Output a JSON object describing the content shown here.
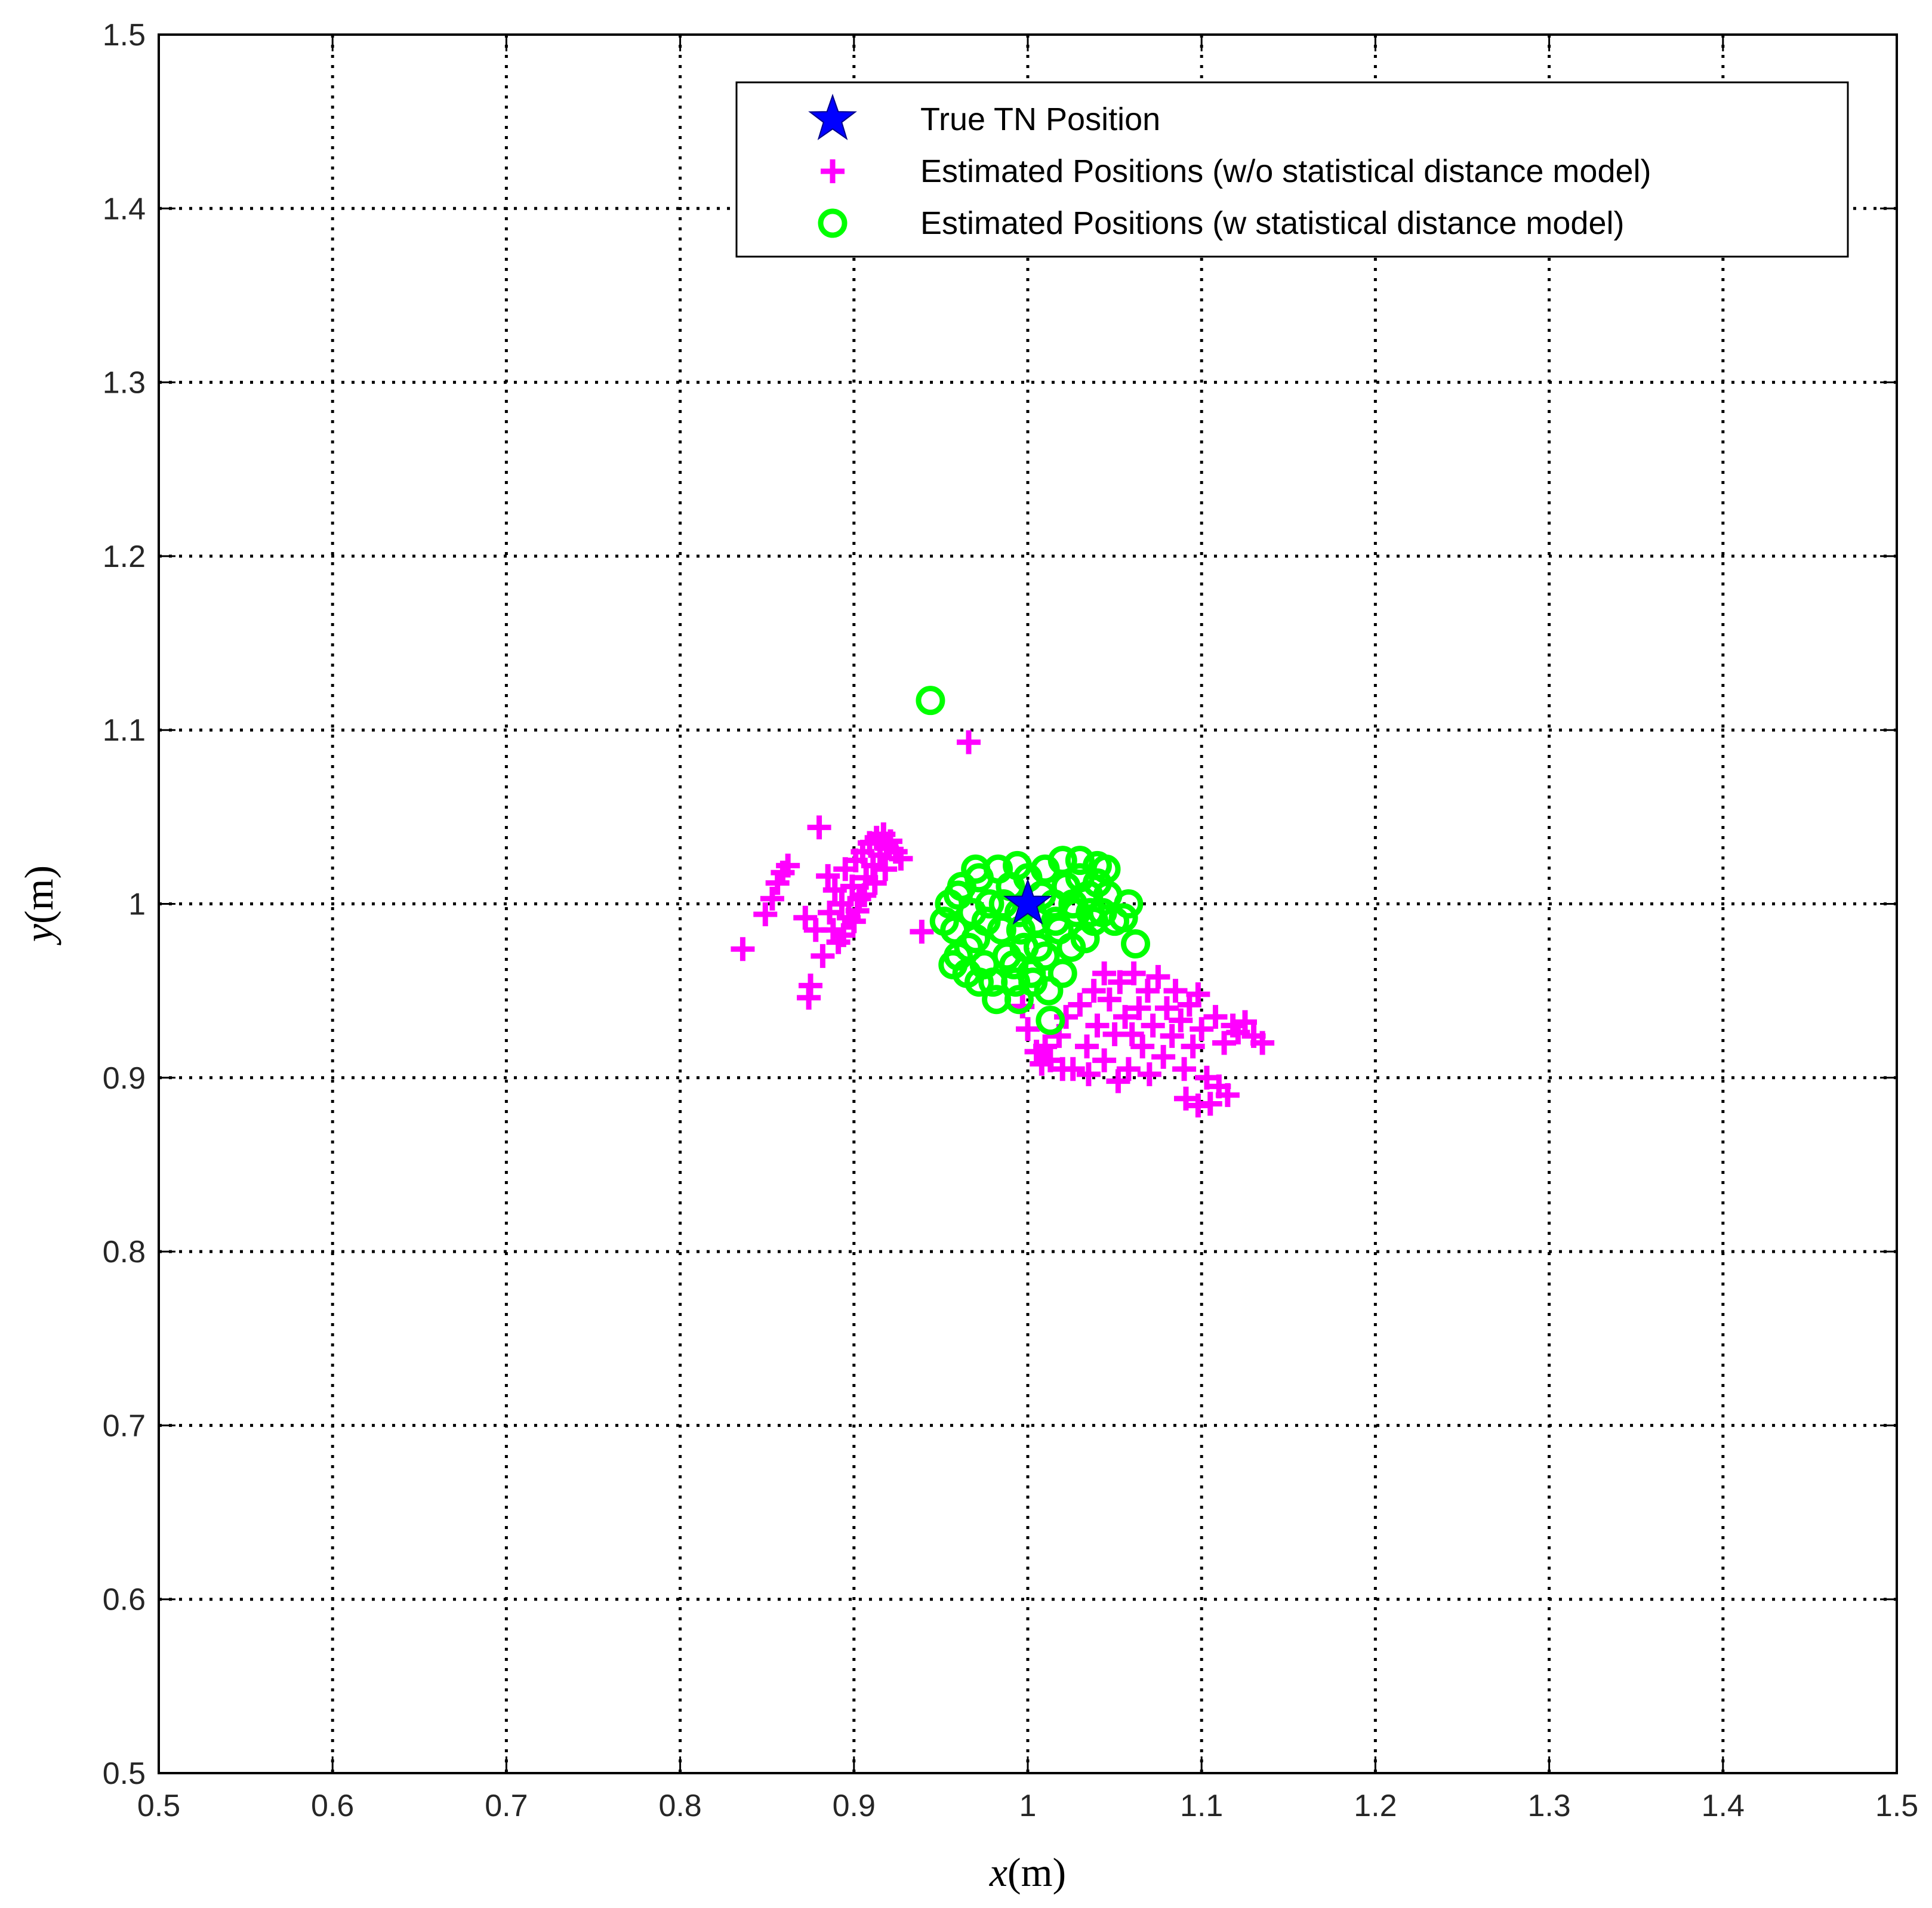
{
  "chart_data": {
    "type": "scatter",
    "xlabel_var": "x",
    "xlabel_unit": "(m)",
    "ylabel_var": "y",
    "ylabel_unit": "(m)",
    "xlim": [
      0.5,
      1.5
    ],
    "ylim": [
      0.5,
      1.5
    ],
    "x_ticks": [
      0.5,
      0.6,
      0.7,
      0.8,
      0.9,
      1,
      1.1,
      1.2,
      1.3,
      1.4,
      1.5
    ],
    "y_ticks": [
      0.5,
      0.6,
      0.7,
      0.8,
      0.9,
      1,
      1.1,
      1.2,
      1.3,
      1.4,
      1.5
    ],
    "x_tick_labels": [
      "0.5",
      "0.6",
      "0.7",
      "0.8",
      "0.9",
      "1",
      "1.1",
      "1.2",
      "1.3",
      "1.4",
      "1.5"
    ],
    "y_tick_labels": [
      "0.5",
      "0.6",
      "0.7",
      "0.8",
      "0.9",
      "1",
      "1.1",
      "1.2",
      "1.3",
      "1.4",
      "1.5"
    ],
    "grid": true,
    "grid_style": "dotted",
    "legend_position": "top-right",
    "series": [
      {
        "name": "True TN Position",
        "marker": "star",
        "color": "#0000ff",
        "points": [
          [
            1.0,
            1.0
          ]
        ]
      },
      {
        "name": "Estimated Positions (w/o statistical distance model)",
        "marker": "plus",
        "color": "#ff00ff",
        "points": [
          [
            0.836,
            0.974
          ],
          [
            0.849,
            0.994
          ],
          [
            0.853,
            1.003
          ],
          [
            0.856,
            1.012
          ],
          [
            0.859,
            1.018
          ],
          [
            0.862,
            1.022
          ],
          [
            0.872,
            0.992
          ],
          [
            0.874,
            0.946
          ],
          [
            0.875,
            0.953
          ],
          [
            0.88,
            1.044
          ],
          [
            0.878,
            0.985
          ],
          [
            0.882,
            0.97
          ],
          [
            0.885,
            1.016
          ],
          [
            0.886,
            0.995
          ],
          [
            0.888,
            0.985
          ],
          [
            0.889,
            1.008
          ],
          [
            0.891,
            0.978
          ],
          [
            0.893,
            1.0
          ],
          [
            0.895,
            1.02
          ],
          [
            0.897,
            0.992
          ],
          [
            0.899,
            1.01
          ],
          [
            0.901,
            1.025
          ],
          [
            0.903,
            1.003
          ],
          [
            0.905,
            1.03
          ],
          [
            0.907,
            1.015
          ],
          [
            0.909,
            1.035
          ],
          [
            0.911,
            1.022
          ],
          [
            0.913,
            1.038
          ],
          [
            0.915,
            1.028
          ],
          [
            0.917,
            1.04
          ],
          [
            0.919,
            1.032
          ],
          [
            0.921,
            1.036
          ],
          [
            0.924,
            1.03
          ],
          [
            0.927,
            1.026
          ],
          [
            0.9,
            0.99
          ],
          [
            0.906,
            1.005
          ],
          [
            0.912,
            1.012
          ],
          [
            0.918,
            1.02
          ],
          [
            0.894,
            0.982
          ],
          [
            0.902,
            0.996
          ],
          [
            0.939,
            0.984
          ],
          [
            0.966,
            1.093
          ],
          [
            0.997,
            0.941
          ],
          [
            1.0,
            0.928
          ],
          [
            1.005,
            0.915
          ],
          [
            1.01,
            0.918
          ],
          [
            1.013,
            0.91
          ],
          [
            1.018,
            0.924
          ],
          [
            1.022,
            0.935
          ],
          [
            1.026,
            0.905
          ],
          [
            1.03,
            0.942
          ],
          [
            1.034,
            0.918
          ],
          [
            1.038,
            0.95
          ],
          [
            1.04,
            0.93
          ],
          [
            1.044,
            0.91
          ],
          [
            1.047,
            0.945
          ],
          [
            1.05,
            0.925
          ],
          [
            1.053,
            0.955
          ],
          [
            1.056,
            0.935
          ],
          [
            1.058,
            0.905
          ],
          [
            1.061,
            0.96
          ],
          [
            1.064,
            0.94
          ],
          [
            1.066,
            0.918
          ],
          [
            1.069,
            0.95
          ],
          [
            1.072,
            0.93
          ],
          [
            1.075,
            0.958
          ],
          [
            1.078,
            0.912
          ],
          [
            1.08,
            0.94
          ],
          [
            1.083,
            0.924
          ],
          [
            1.085,
            0.95
          ],
          [
            1.088,
            0.933
          ],
          [
            1.09,
            0.905
          ],
          [
            1.093,
            0.942
          ],
          [
            1.095,
            0.918
          ],
          [
            1.098,
            0.948
          ],
          [
            1.1,
            0.928
          ],
          [
            1.103,
            0.9
          ],
          [
            1.105,
            0.885
          ],
          [
            1.108,
            0.935
          ],
          [
            1.11,
            0.895
          ],
          [
            1.113,
            0.92
          ],
          [
            1.115,
            0.89
          ],
          [
            1.118,
            0.93
          ],
          [
            1.121,
            0.926
          ],
          [
            1.125,
            0.932
          ],
          [
            1.13,
            0.924
          ],
          [
            1.135,
            0.92
          ],
          [
            1.091,
            0.888
          ],
          [
            1.098,
            0.884
          ],
          [
            1.07,
            0.902
          ],
          [
            1.052,
            0.898
          ],
          [
            1.035,
            0.902
          ],
          [
            1.02,
            0.905
          ],
          [
            1.008,
            0.908
          ],
          [
            1.044,
            0.96
          ],
          [
            1.06,
            0.925
          ]
        ]
      },
      {
        "name": "Estimated Positions (w statistical distance model)",
        "marker": "circle",
        "color": "#00ff00",
        "points": [
          [
            0.944,
            1.117
          ],
          [
            1.062,
            0.977
          ],
          [
            1.013,
            0.933
          ],
          [
            0.995,
            0.945
          ],
          [
            1.02,
            1.025
          ],
          [
            1.045,
            1.02
          ],
          [
            0.955,
            1.0
          ],
          [
            0.958,
            0.985
          ],
          [
            0.96,
            0.97
          ],
          [
            0.962,
            1.01
          ],
          [
            0.965,
            0.96
          ],
          [
            0.968,
            0.995
          ],
          [
            0.97,
            0.98
          ],
          [
            0.972,
            1.015
          ],
          [
            0.975,
            0.965
          ],
          [
            0.978,
            1.0
          ],
          [
            0.98,
            0.955
          ],
          [
            0.983,
            1.02
          ],
          [
            0.985,
            0.985
          ],
          [
            0.988,
            0.97
          ],
          [
            0.99,
            1.01
          ],
          [
            0.993,
            0.955
          ],
          [
            0.995,
            0.995
          ],
          [
            0.998,
            0.975
          ],
          [
            1.0,
            1.015
          ],
          [
            1.002,
            0.96
          ],
          [
            1.005,
            0.99
          ],
          [
            1.008,
            1.005
          ],
          [
            1.01,
            0.97
          ],
          [
            1.012,
            0.95
          ],
          [
            1.015,
            1.0
          ],
          [
            1.018,
            0.985
          ],
          [
            1.02,
            0.96
          ],
          [
            1.022,
            1.01
          ],
          [
            1.025,
            0.975
          ],
          [
            1.028,
            0.995
          ],
          [
            1.03,
            1.015
          ],
          [
            1.033,
            0.98
          ],
          [
            1.035,
            1.005
          ],
          [
            1.038,
            0.99
          ],
          [
            1.04,
            1.012
          ],
          [
            1.043,
            0.995
          ],
          [
            1.046,
            1.005
          ],
          [
            1.05,
            0.99
          ],
          [
            1.055,
            0.992
          ],
          [
            1.058,
            1.0
          ],
          [
            0.966,
            0.975
          ],
          [
            0.976,
            0.99
          ],
          [
            0.986,
            1.0
          ],
          [
            0.996,
            0.985
          ],
          [
            1.006,
            0.975
          ],
          [
            1.016,
            0.99
          ],
          [
            1.026,
            1.0
          ],
          [
            1.036,
            0.995
          ],
          [
            0.972,
            0.955
          ],
          [
            0.992,
            0.965
          ],
          [
            1.003,
            0.955
          ],
          [
            0.982,
            0.945
          ],
          [
            0.96,
            1.005
          ],
          [
            0.97,
            1.02
          ],
          [
            1.01,
            1.02
          ],
          [
            1.03,
            1.025
          ],
          [
            1.04,
            1.022
          ],
          [
            0.994,
            1.022
          ],
          [
            0.952,
            0.99
          ],
          [
            0.957,
            0.965
          ]
        ]
      }
    ]
  },
  "legend": {
    "items": [
      "True TN Position",
      "Estimated Positions (w/o statistical distance model)",
      "Estimated Positions (w statistical distance model)"
    ]
  }
}
